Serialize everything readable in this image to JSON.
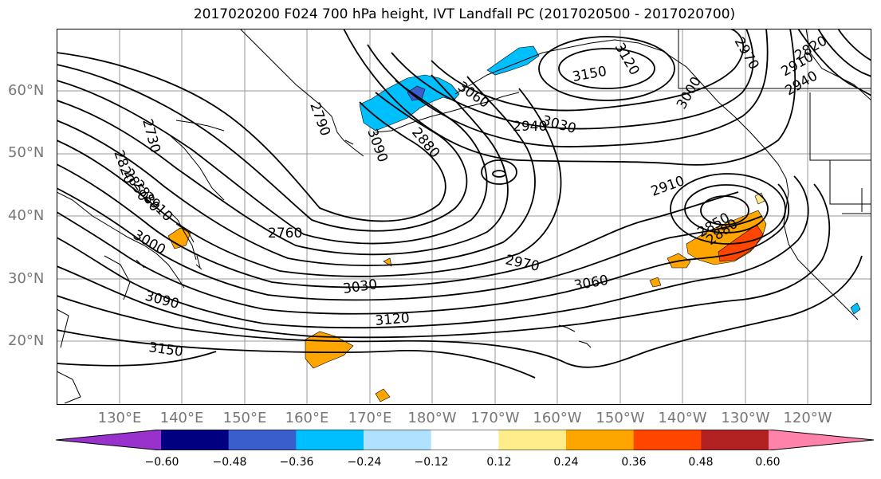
{
  "title": "2017020200 F024 700 hPa height, IVT Landfall PC (2017020500 - 2017020700)",
  "latitude_labels": [
    "60°N",
    "50°N",
    "40°N",
    "30°N",
    "20°N"
  ],
  "longitude_labels": [
    "130°E",
    "140°E",
    "150°E",
    "160°E",
    "170°E",
    "180°W",
    "170°W",
    "160°W",
    "150°W",
    "140°W",
    "130°W",
    "120°W"
  ],
  "contour_labels": [
    "2730",
    "2820",
    "2850",
    "2880",
    "2910",
    "2940",
    "2970",
    "2760",
    "3000",
    "3030",
    "3060",
    "3090",
    "3120",
    "3150",
    "2790",
    "2910",
    "2850",
    "2880",
    "3060",
    "3120",
    "3150",
    "2970",
    "2910",
    "2940",
    "2820",
    "2880",
    "3090",
    "3000",
    "3030"
  ],
  "colorbar": {
    "ticks": [
      "−0.60",
      "−0.48",
      "−0.36",
      "−0.24",
      "−0.12",
      "0.12",
      "0.24",
      "0.36",
      "0.48",
      "0.60"
    ],
    "colors": [
      "#9932cc",
      "#000080",
      "#3a5fcd",
      "#00bfff",
      "#b0e2ff",
      "#ffffff",
      "#ffec8b",
      "#ffa500",
      "#ff4500",
      "#b22222",
      "#ff82ab"
    ]
  }
}
